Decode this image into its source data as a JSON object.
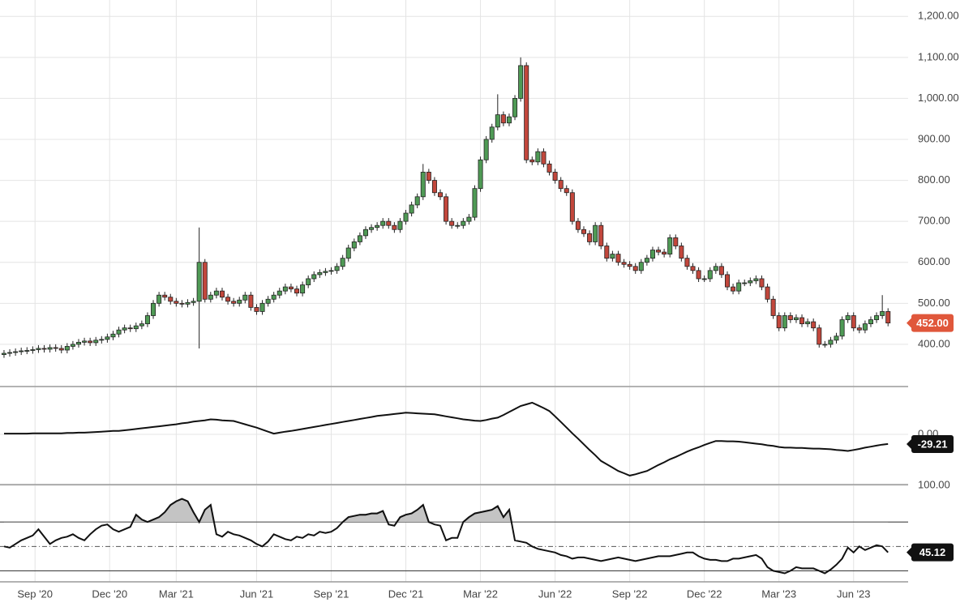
{
  "chart_data": [
    {
      "type": "candlestick",
      "categories": [
        null,
        null,
        null,
        null,
        null,
        null,
        null,
        null,
        null,
        null,
        null,
        null,
        null,
        null,
        null,
        null,
        null,
        null,
        null,
        null,
        null,
        null,
        null,
        null,
        null,
        null,
        null,
        null,
        null,
        null,
        null,
        null,
        null,
        null,
        null,
        null,
        null,
        null,
        null,
        null,
        null,
        null,
        null,
        null,
        null,
        null,
        null,
        null,
        null,
        null,
        null,
        null,
        null,
        null,
        null,
        null,
        null,
        null,
        null,
        null,
        null,
        null,
        null,
        null,
        null,
        null,
        null,
        null,
        null,
        null,
        null,
        null,
        null,
        null,
        null,
        null,
        null,
        null,
        null,
        null,
        null,
        null,
        null,
        null,
        null,
        null,
        null,
        null,
        null,
        null,
        null,
        null,
        null,
        null,
        null,
        null,
        null,
        null,
        null,
        null,
        null,
        null,
        null,
        null,
        null,
        null,
        null,
        null,
        null,
        null,
        null,
        null,
        null,
        null,
        null,
        null,
        null,
        null,
        null,
        null,
        null,
        null,
        null,
        null,
        null,
        null,
        null,
        null,
        null,
        null,
        null,
        null,
        null,
        null,
        null,
        null,
        null,
        null,
        null,
        null,
        null,
        null,
        null,
        null,
        null,
        null,
        null,
        null,
        null,
        null,
        null,
        null,
        null,
        null,
        null
      ],
      "open": [
        375,
        378,
        380,
        382,
        384,
        385,
        387,
        390,
        388,
        392,
        390,
        386,
        395,
        400,
        405,
        408,
        404,
        410,
        412,
        418,
        425,
        435,
        440,
        438,
        445,
        450,
        470,
        500,
        520,
        515,
        505,
        500,
        498,
        502,
        505,
        600,
        510,
        520,
        530,
        515,
        505,
        500,
        508,
        520,
        490,
        480,
        500,
        510,
        520,
        530,
        540,
        535,
        525,
        545,
        560,
        570,
        575,
        578,
        580,
        590,
        610,
        635,
        650,
        665,
        680,
        685,
        690,
        700,
        690,
        680,
        700,
        720,
        740,
        760,
        820,
        800,
        770,
        760,
        700,
        690,
        690,
        700,
        710,
        780,
        850,
        900,
        930,
        960,
        940,
        955,
        1000,
        1080,
        850,
        845,
        870,
        840,
        820,
        800,
        780,
        770,
        700,
        680,
        670,
        650,
        690,
        640,
        610,
        620,
        600,
        595,
        590,
        580,
        600,
        610,
        630,
        625,
        620,
        660,
        640,
        610,
        590,
        580,
        560,
        560,
        580,
        590,
        570,
        540,
        530,
        550,
        550,
        555,
        560,
        540,
        510,
        470,
        440,
        470,
        460,
        465,
        450,
        455,
        440,
        400,
        400,
        410,
        420,
        460,
        470,
        440,
        435,
        450,
        460,
        470,
        480
      ],
      "high": [
        386,
        388,
        390,
        392,
        393,
        395,
        398,
        398,
        400,
        400,
        398,
        403,
        408,
        413,
        416,
        416,
        418,
        420,
        426,
        433,
        443,
        448,
        448,
        453,
        458,
        478,
        508,
        528,
        528,
        523,
        513,
        508,
        510,
        513,
        685,
        608,
        528,
        538,
        538,
        523,
        513,
        516,
        528,
        528,
        498,
        508,
        518,
        528,
        538,
        548,
        548,
        543,
        553,
        568,
        578,
        583,
        586,
        588,
        598,
        618,
        643,
        658,
        673,
        688,
        693,
        698,
        708,
        708,
        698,
        708,
        728,
        748,
        768,
        840,
        828,
        808,
        778,
        768,
        708,
        698,
        708,
        718,
        788,
        858,
        908,
        938,
        1010,
        968,
        963,
        1008,
        1100,
        1088,
        858,
        878,
        878,
        848,
        828,
        808,
        788,
        778,
        708,
        688,
        678,
        698,
        698,
        648,
        628,
        628,
        608,
        603,
        598,
        608,
        618,
        638,
        638,
        633,
        668,
        668,
        648,
        618,
        598,
        588,
        568,
        588,
        598,
        598,
        578,
        548,
        558,
        558,
        563,
        568,
        568,
        548,
        518,
        478,
        478,
        478,
        473,
        473,
        463,
        463,
        448,
        408,
        418,
        428,
        468,
        478,
        478,
        448,
        458,
        468,
        478,
        520,
        488
      ],
      "low": [
        367,
        370,
        372,
        374,
        376,
        377,
        379,
        380,
        380,
        382,
        378,
        378,
        387,
        392,
        397,
        396,
        396,
        402,
        404,
        410,
        417,
        427,
        430,
        430,
        437,
        442,
        462,
        492,
        507,
        497,
        492,
        490,
        490,
        494,
        390,
        502,
        502,
        512,
        507,
        497,
        492,
        492,
        500,
        482,
        472,
        472,
        492,
        502,
        512,
        522,
        527,
        517,
        517,
        537,
        552,
        562,
        567,
        570,
        572,
        582,
        602,
        627,
        642,
        657,
        672,
        677,
        682,
        682,
        672,
        672,
        692,
        712,
        732,
        752,
        792,
        762,
        752,
        692,
        682,
        682,
        682,
        692,
        702,
        772,
        842,
        892,
        922,
        932,
        932,
        947,
        992,
        842,
        837,
        837,
        832,
        812,
        792,
        772,
        762,
        692,
        672,
        662,
        642,
        642,
        632,
        602,
        602,
        592,
        587,
        582,
        572,
        572,
        592,
        602,
        617,
        612,
        612,
        632,
        602,
        582,
        572,
        552,
        552,
        552,
        572,
        562,
        532,
        522,
        522,
        542,
        542,
        547,
        532,
        502,
        462,
        432,
        432,
        452,
        452,
        442,
        442,
        432,
        392,
        392,
        392,
        402,
        412,
        452,
        432,
        427,
        427,
        442,
        452,
        462,
        444
      ],
      "close": [
        378,
        380,
        382,
        384,
        385,
        387,
        390,
        388,
        392,
        390,
        386,
        395,
        400,
        405,
        408,
        404,
        410,
        412,
        418,
        425,
        435,
        440,
        438,
        445,
        450,
        470,
        500,
        520,
        515,
        505,
        500,
        498,
        502,
        505,
        600,
        510,
        520,
        530,
        515,
        505,
        500,
        508,
        520,
        490,
        480,
        500,
        510,
        520,
        530,
        540,
        535,
        525,
        545,
        560,
        570,
        575,
        578,
        580,
        590,
        610,
        635,
        650,
        665,
        680,
        685,
        690,
        700,
        690,
        680,
        700,
        720,
        740,
        760,
        820,
        800,
        770,
        760,
        700,
        690,
        690,
        700,
        710,
        780,
        850,
        900,
        930,
        960,
        940,
        955,
        1000,
        1080,
        850,
        845,
        870,
        840,
        820,
        800,
        780,
        770,
        700,
        680,
        670,
        650,
        690,
        640,
        610,
        620,
        600,
        595,
        590,
        580,
        600,
        610,
        630,
        625,
        620,
        660,
        640,
        610,
        590,
        580,
        560,
        560,
        580,
        590,
        570,
        540,
        530,
        550,
        550,
        555,
        560,
        540,
        510,
        470,
        440,
        470,
        460,
        465,
        450,
        455,
        440,
        400,
        400,
        410,
        420,
        460,
        470,
        440,
        435,
        450,
        460,
        470,
        480,
        452
      ],
      "up_color": "#4f9a55",
      "down_color": "#c2473c",
      "ylim": [
        297,
        1240
      ],
      "xlim": [
        -0.7,
        157.5
      ],
      "yticks": [
        {
          "value": 400,
          "label": "400.00"
        },
        {
          "value": 500,
          "label": "500.00"
        },
        {
          "value": 600,
          "label": "600.00"
        },
        {
          "value": 700,
          "label": "700.00"
        },
        {
          "value": 800,
          "label": "800.00"
        },
        {
          "value": 900,
          "label": "900.00"
        },
        {
          "value": 1000,
          "label": "1,000.00"
        },
        {
          "value": 1100,
          "label": "1,100.00"
        },
        {
          "value": 1200,
          "label": "1,200.00"
        }
      ],
      "last_label": {
        "value": 452,
        "label": "452.00"
      },
      "last_label_color": "#e0573b",
      "grid": true
    },
    {
      "type": "line",
      "color": "#111111",
      "values": [
        2,
        2,
        2,
        2,
        2,
        3,
        3,
        3,
        3,
        3,
        3,
        4,
        4,
        5,
        5,
        6,
        7,
        8,
        9,
        10,
        10,
        12,
        14,
        16,
        18,
        20,
        22,
        24,
        26,
        28,
        30,
        33,
        35,
        38,
        40,
        42,
        45,
        44,
        42,
        41,
        40,
        35,
        30,
        25,
        20,
        14,
        8,
        2,
        5,
        8,
        10,
        13,
        16,
        19,
        22,
        25,
        28,
        31,
        34,
        37,
        40,
        43,
        46,
        49,
        52,
        55,
        57,
        59,
        61,
        63,
        65,
        64,
        63,
        62,
        61,
        60,
        57,
        54,
        51,
        48,
        45,
        43,
        41,
        40,
        43,
        47,
        50,
        58,
        67,
        76,
        85,
        90,
        95,
        87,
        79,
        70,
        54,
        37,
        20,
        3,
        -13,
        -30,
        -47,
        -63,
        -80,
        -90,
        -100,
        -110,
        -117,
        -124,
        -120,
        -115,
        -110,
        -101,
        -92,
        -84,
        -75,
        -68,
        -60,
        -52,
        -45,
        -39,
        -32,
        -26,
        -20,
        -20,
        -21,
        -21,
        -22,
        -24,
        -26,
        -28,
        -30,
        -33,
        -35,
        -38,
        -40,
        -40,
        -41,
        -41,
        -42,
        -43,
        -43,
        -44,
        -45,
        -47,
        -48,
        -50,
        -47,
        -44,
        -40,
        -37,
        -34,
        -31,
        -29.21
      ],
      "ylim": [
        -151,
        141
      ],
      "yticks": [
        {
          "value": 0,
          "label": "0.00"
        }
      ],
      "last_label": {
        "value": -29.21,
        "label": "-29.21"
      },
      "last_label_color": "#111111",
      "grid": true
    },
    {
      "type": "line",
      "color": "#111111",
      "values": [
        50,
        49,
        52,
        55,
        57,
        59,
        64,
        58,
        52,
        55,
        57,
        58,
        60,
        57,
        55,
        60,
        64,
        67,
        68,
        64,
        62,
        64,
        66,
        76,
        72,
        70,
        72,
        74,
        78,
        84,
        87,
        89,
        87,
        78,
        70,
        80,
        84,
        60,
        58,
        62,
        60,
        59,
        57,
        55,
        52,
        50,
        54,
        60,
        58,
        56,
        55,
        58,
        57,
        60,
        59,
        62,
        61,
        62,
        65,
        70,
        74,
        75,
        76,
        76,
        77,
        77,
        79,
        68,
        67,
        74,
        76,
        77,
        80,
        84,
        70,
        68,
        67,
        55,
        57,
        57,
        70,
        74,
        77,
        78,
        79,
        80,
        83,
        74,
        80,
        55,
        54,
        53,
        50,
        48,
        47,
        46,
        45,
        43,
        42,
        40,
        41,
        41,
        40,
        39,
        38,
        39,
        40,
        41,
        40,
        39,
        38,
        39,
        40,
        41,
        42,
        42,
        42,
        43,
        44,
        45,
        45,
        42,
        40,
        39,
        39,
        38,
        38,
        40,
        40,
        41,
        42,
        43,
        40,
        33,
        30,
        29,
        28,
        30,
        33,
        32,
        32,
        32,
        30,
        28,
        31,
        35,
        40,
        49,
        45,
        50,
        47,
        49,
        51,
        50,
        45.12
      ],
      "ylim": [
        21,
        100
      ],
      "yticks": [
        {
          "value": 100,
          "label": "100.00"
        }
      ],
      "levels": [
        30,
        50,
        70
      ],
      "level_styles": [
        "solid",
        "dashed",
        "solid"
      ],
      "shade_color": "#c4c4c4",
      "xticks": [
        {
          "value": 5.4,
          "label": "Sep '20"
        },
        {
          "value": 18.4,
          "label": "Dec '20"
        },
        {
          "value": 30,
          "label": "Mar '21"
        },
        {
          "value": 44,
          "label": "Jun '21"
        },
        {
          "value": 57,
          "label": "Sep '21"
        },
        {
          "value": 70,
          "label": "Dec '21"
        },
        {
          "value": 83,
          "label": "Mar '22"
        },
        {
          "value": 96,
          "label": "Jun '22"
        },
        {
          "value": 109,
          "label": "Sep '22"
        },
        {
          "value": 122,
          "label": "Dec '22"
        },
        {
          "value": 135,
          "label": "Mar '23"
        },
        {
          "value": 148,
          "label": "Jun '23"
        }
      ],
      "last_label": {
        "value": 45.12,
        "label": "45.12"
      },
      "last_label_color": "#111111",
      "grid": true
    }
  ]
}
